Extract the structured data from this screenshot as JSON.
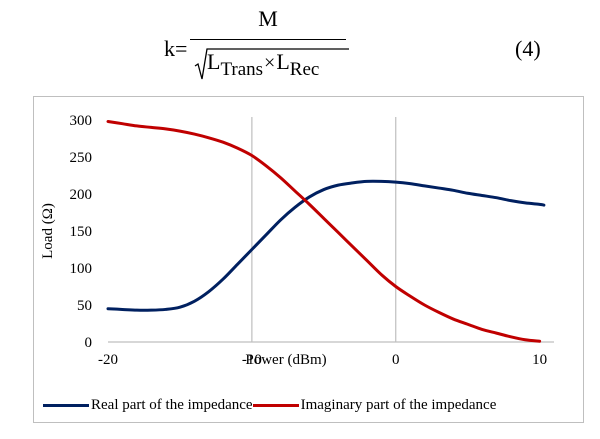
{
  "equation": {
    "lhs": "k=",
    "numerator": "M",
    "denominator": {
      "term1": "L",
      "term1_sub": "Trans",
      "operator": "×",
      "term2": "L",
      "term2_sub": "Rec"
    },
    "number": "(4)"
  },
  "chart_data": {
    "type": "line",
    "title": "",
    "xlabel": "Power (dBm)",
    "ylabel": "Load (Ω)",
    "xlim": [
      -20,
      11
    ],
    "ylim": [
      0,
      300
    ],
    "x_ticks": [
      {
        "value": -20,
        "label": "-20"
      },
      {
        "value": -10,
        "label": "-10"
      },
      {
        "value": 0,
        "label": "0"
      },
      {
        "value": 10,
        "label": "10"
      }
    ],
    "y_ticks": [
      {
        "value": 0,
        "label": "0"
      },
      {
        "value": 50,
        "label": "50"
      },
      {
        "value": 100,
        "label": "100"
      },
      {
        "value": 150,
        "label": "150"
      },
      {
        "value": 200,
        "label": "200"
      },
      {
        "value": 250,
        "label": "250"
      },
      {
        "value": 300,
        "label": "300"
      }
    ],
    "grid": "vertical lines at -10 and 0",
    "legend_position": "bottom",
    "series": [
      {
        "name": "Real part of the impedance",
        "color": "#002060",
        "x": [
          -20,
          -19,
          -18,
          -17,
          -16,
          -15,
          -14,
          -13,
          -12,
          -11,
          -10,
          -9,
          -8,
          -7,
          -6,
          -5,
          -4,
          -3,
          -2,
          -1,
          0,
          1,
          2,
          3,
          4,
          5,
          6,
          7,
          8,
          9,
          10,
          10.3
        ],
        "y": [
          45,
          44,
          43,
          43,
          44,
          47,
          55,
          68,
          85,
          105,
          125,
          145,
          165,
          182,
          196,
          206,
          212,
          215,
          217,
          217,
          216,
          214,
          211,
          208,
          205,
          201,
          198,
          195,
          191,
          188,
          186,
          185
        ]
      },
      {
        "name": "Imaginary part of the impedance",
        "color": "#C00000",
        "x": [
          -20,
          -19,
          -18,
          -17,
          -16,
          -15,
          -14,
          -13,
          -12,
          -11,
          -10,
          -9,
          -8,
          -7,
          -6,
          -5,
          -4,
          -3,
          -2,
          -1,
          0,
          1,
          2,
          3,
          4,
          5,
          6,
          7,
          8,
          9,
          10
        ],
        "y": [
          298,
          295,
          292,
          290,
          288,
          285,
          281,
          276,
          270,
          262,
          252,
          238,
          222,
          204,
          186,
          167,
          148,
          129,
          110,
          91,
          75,
          62,
          50,
          40,
          31,
          24,
          17,
          12,
          7,
          3,
          1
        ]
      }
    ]
  }
}
